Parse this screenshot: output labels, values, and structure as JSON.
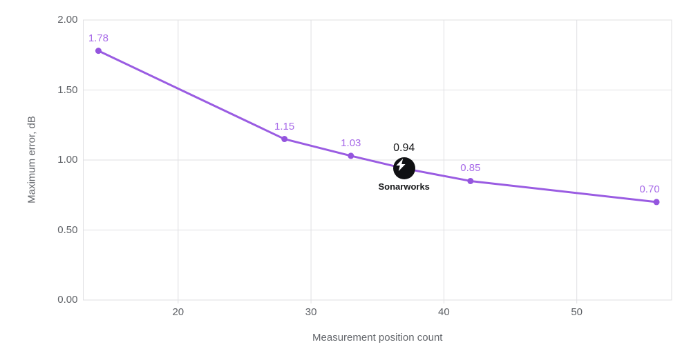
{
  "chart_data": {
    "type": "line",
    "title": "",
    "xlabel": "Measurement position count",
    "ylabel": "Maximum error, dB",
    "x": [
      14,
      28,
      33,
      37,
      42,
      56
    ],
    "y": [
      1.78,
      1.15,
      1.03,
      0.94,
      0.85,
      0.7
    ],
    "point_labels": [
      "1.78",
      "1.15",
      "1.03",
      "0.94",
      "0.85",
      "0.70"
    ],
    "x_ticks": [
      {
        "value": 20,
        "label": "20"
      },
      {
        "value": 30,
        "label": "30"
      },
      {
        "value": 40,
        "label": "40"
      },
      {
        "value": 50,
        "label": "50"
      }
    ],
    "y_ticks": [
      {
        "value": 0,
        "label": "0.00"
      },
      {
        "value": 0.5,
        "label": "0.50"
      },
      {
        "value": 1,
        "label": "1.00"
      },
      {
        "value": 1.5,
        "label": "1.50"
      },
      {
        "value": 2,
        "label": "2.00"
      }
    ],
    "xlim": [
      12.86,
      57.14
    ],
    "ylim": [
      0,
      2
    ],
    "grid": true,
    "legend": "none",
    "colors": {
      "line": "#9a5ce2",
      "point": "#9455de",
      "point_label": "#a76ae8",
      "grid": "#dfdfe2",
      "tick_text": "#5d6065",
      "axis_title_text": "#63666b",
      "annotation_badge": "#101113",
      "annotation_glyph": "#ffffff"
    },
    "annotation": {
      "point_index": 3,
      "label": "Sonarworks",
      "icon": "lightning-bolt-icon"
    }
  }
}
